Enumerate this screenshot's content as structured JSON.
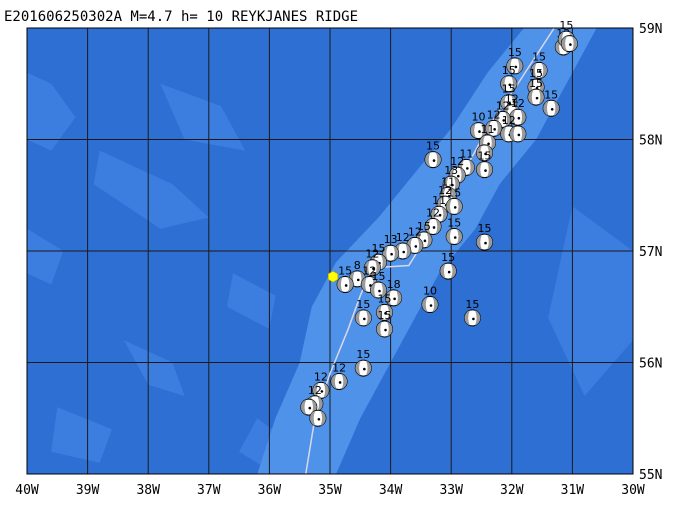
{
  "title": "E201606250302A M=4.7 h= 10 REYKJANES RIDGE",
  "map": {
    "lon_range": [
      -40,
      -30
    ],
    "lat_range": [
      55,
      59
    ],
    "colors": {
      "ocean_deep": "#2e6fd3",
      "ocean_mid": "#3b7ee0",
      "ridge_shallow": "#4f92ea",
      "grid": "#1a1a1a",
      "track": "#d8d8e8",
      "event": "#ffff00"
    },
    "x_ticks": [
      {
        "lon": -40,
        "label": "40W"
      },
      {
        "lon": -39,
        "label": "39W"
      },
      {
        "lon": -38,
        "label": "38W"
      },
      {
        "lon": -37,
        "label": "37W"
      },
      {
        "lon": -36,
        "label": "36W"
      },
      {
        "lon": -35,
        "label": "35W"
      },
      {
        "lon": -34,
        "label": "34W"
      },
      {
        "lon": -33,
        "label": "33W"
      },
      {
        "lon": -32,
        "label": "32W"
      },
      {
        "lon": -31,
        "label": "31W"
      },
      {
        "lon": -30,
        "label": "30W"
      }
    ],
    "y_ticks": [
      {
        "lat": 59,
        "label": "59N"
      },
      {
        "lat": 58,
        "label": "58N"
      },
      {
        "lat": 57,
        "label": "57N"
      },
      {
        "lat": 56,
        "label": "56N"
      },
      {
        "lat": 55,
        "label": "55N"
      }
    ],
    "event": {
      "lon": -34.95,
      "lat": 56.77
    },
    "mechanisms": [
      {
        "lon": -31.15,
        "lat": 58.83,
        "depth": "12"
      },
      {
        "lon": -31.1,
        "lat": 58.9,
        "depth": "15"
      },
      {
        "lon": -31.05,
        "lat": 58.86,
        "depth": ""
      },
      {
        "lon": -31.95,
        "lat": 58.66,
        "depth": "15"
      },
      {
        "lon": -31.55,
        "lat": 58.62,
        "depth": "15"
      },
      {
        "lon": -32.05,
        "lat": 58.5,
        "depth": "15"
      },
      {
        "lon": -31.6,
        "lat": 58.47,
        "depth": "15"
      },
      {
        "lon": -31.6,
        "lat": 58.38,
        "depth": "15"
      },
      {
        "lon": -32.05,
        "lat": 58.33,
        "depth": "15"
      },
      {
        "lon": -31.35,
        "lat": 58.28,
        "depth": "15"
      },
      {
        "lon": -32.0,
        "lat": 58.24,
        "depth": "12"
      },
      {
        "lon": -31.9,
        "lat": 58.2,
        "depth": "12"
      },
      {
        "lon": -32.15,
        "lat": 58.18,
        "depth": "12"
      },
      {
        "lon": -32.55,
        "lat": 58.08,
        "depth": "10"
      },
      {
        "lon": -32.3,
        "lat": 58.1,
        "depth": "12"
      },
      {
        "lon": -32.05,
        "lat": 58.05,
        "depth": "12"
      },
      {
        "lon": -31.9,
        "lat": 58.05,
        "depth": ""
      },
      {
        "lon": -32.4,
        "lat": 57.97,
        "depth": "11"
      },
      {
        "lon": -32.45,
        "lat": 57.88,
        "depth": ""
      },
      {
        "lon": -33.3,
        "lat": 57.82,
        "depth": "15"
      },
      {
        "lon": -32.75,
        "lat": 57.75,
        "depth": "11"
      },
      {
        "lon": -32.45,
        "lat": 57.73,
        "depth": "15"
      },
      {
        "lon": -32.9,
        "lat": 57.68,
        "depth": "12"
      },
      {
        "lon": -33.0,
        "lat": 57.6,
        "depth": "13"
      },
      {
        "lon": -33.05,
        "lat": 57.5,
        "depth": "11"
      },
      {
        "lon": -33.1,
        "lat": 57.42,
        "depth": "12"
      },
      {
        "lon": -32.95,
        "lat": 57.4,
        "depth": "15"
      },
      {
        "lon": -33.2,
        "lat": 57.33,
        "depth": "11"
      },
      {
        "lon": -33.3,
        "lat": 57.22,
        "depth": "12"
      },
      {
        "lon": -33.45,
        "lat": 57.1,
        "depth": "15"
      },
      {
        "lon": -33.6,
        "lat": 57.05,
        "depth": "12"
      },
      {
        "lon": -32.95,
        "lat": 57.13,
        "depth": "15"
      },
      {
        "lon": -32.45,
        "lat": 57.08,
        "depth": "15"
      },
      {
        "lon": -33.8,
        "lat": 57.0,
        "depth": "12"
      },
      {
        "lon": -34.0,
        "lat": 56.98,
        "depth": "13"
      },
      {
        "lon": -34.2,
        "lat": 56.9,
        "depth": "15"
      },
      {
        "lon": -34.3,
        "lat": 56.85,
        "depth": "12"
      },
      {
        "lon": -34.55,
        "lat": 56.75,
        "depth": "8"
      },
      {
        "lon": -34.75,
        "lat": 56.7,
        "depth": "15"
      },
      {
        "lon": -34.35,
        "lat": 56.7,
        "depth": "12"
      },
      {
        "lon": -34.2,
        "lat": 56.65,
        "depth": "15"
      },
      {
        "lon": -33.95,
        "lat": 56.58,
        "depth": "18"
      },
      {
        "lon": -33.05,
        "lat": 56.82,
        "depth": "15"
      },
      {
        "lon": -33.35,
        "lat": 56.52,
        "depth": "10"
      },
      {
        "lon": -34.1,
        "lat": 56.45,
        "depth": "15"
      },
      {
        "lon": -34.45,
        "lat": 56.4,
        "depth": "15"
      },
      {
        "lon": -34.1,
        "lat": 56.3,
        "depth": "15"
      },
      {
        "lon": -32.65,
        "lat": 56.4,
        "depth": "15"
      },
      {
        "lon": -34.45,
        "lat": 55.95,
        "depth": "15"
      },
      {
        "lon": -34.85,
        "lat": 55.83,
        "depth": "12"
      },
      {
        "lon": -35.15,
        "lat": 55.75,
        "depth": "12"
      },
      {
        "lon": -35.25,
        "lat": 55.63,
        "depth": "12"
      },
      {
        "lon": -35.35,
        "lat": 55.6,
        "depth": ""
      },
      {
        "lon": -35.2,
        "lat": 55.5,
        "depth": ""
      }
    ]
  }
}
